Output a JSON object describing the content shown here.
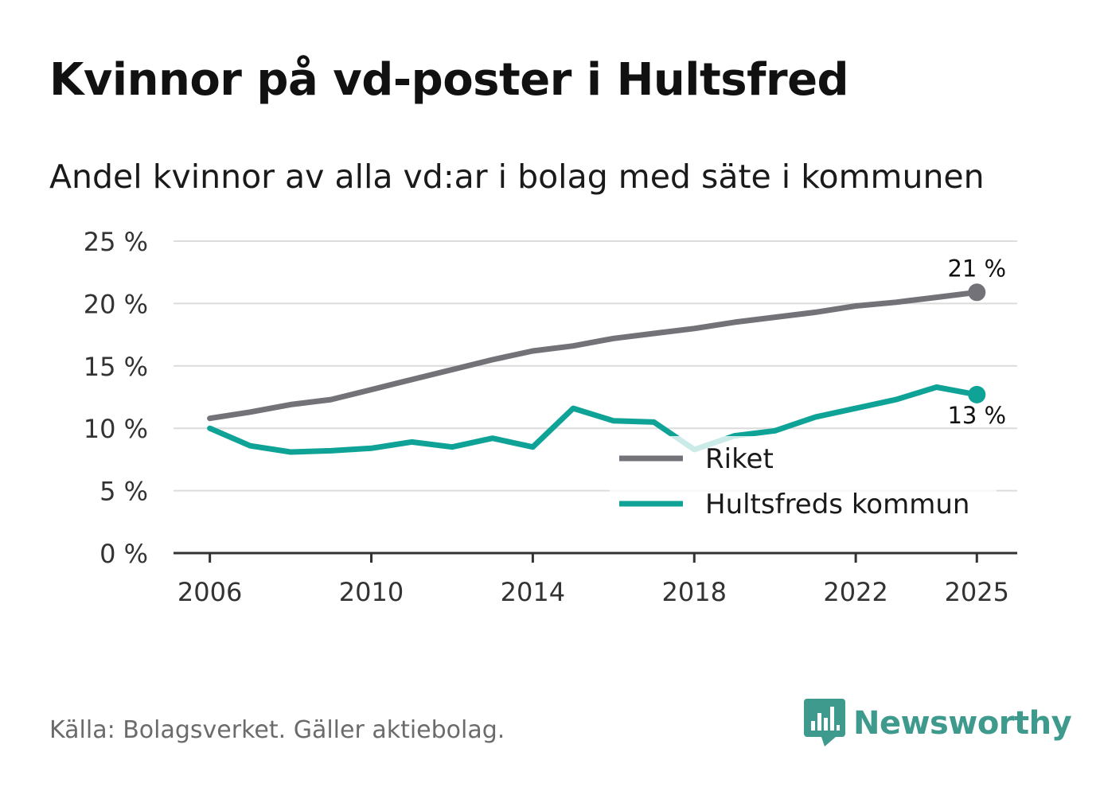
{
  "title": "Kvinnor på vd-poster i Hultsfred",
  "subtitle": "Andel kvinnor av alla vd:ar i bolag med säte i kommunen",
  "source": "Källa: Bolagsverket. Gäller aktiebolag.",
  "brand": {
    "name": "Newsworthy",
    "icon": "bar-chart-speech-bubble-icon",
    "color": "#3e9a8c"
  },
  "chart_data": {
    "type": "line",
    "title": "Kvinnor på vd-poster i Hultsfred",
    "subtitle": "Andel kvinnor av alla vd:ar i bolag med säte i kommunen",
    "xlabel": "",
    "ylabel": "",
    "x": [
      2006,
      2007,
      2008,
      2009,
      2010,
      2011,
      2012,
      2013,
      2014,
      2015,
      2016,
      2017,
      2018,
      2019,
      2020,
      2021,
      2022,
      2023,
      2024,
      2025
    ],
    "x_ticks": [
      2006,
      2010,
      2014,
      2018,
      2022,
      2025
    ],
    "x_tick_labels": [
      "2006",
      "2010",
      "2014",
      "2018",
      "2022",
      "2025"
    ],
    "xlim": [
      2005.1,
      2026
    ],
    "ylim": [
      0,
      25
    ],
    "y_ticks": [
      0,
      5,
      10,
      15,
      20,
      25
    ],
    "y_tick_labels": [
      "0 %",
      "5 %",
      "10 %",
      "15 %",
      "20 %",
      "25 %"
    ],
    "grid": true,
    "legend_position": "bottom-right",
    "series": [
      {
        "name": "Riket",
        "color": "#737278",
        "values": [
          10.8,
          11.3,
          11.9,
          12.3,
          13.1,
          13.9,
          14.7,
          15.5,
          16.2,
          16.6,
          17.2,
          17.6,
          18.0,
          18.5,
          18.9,
          19.3,
          19.8,
          20.1,
          20.5,
          20.9
        ],
        "end_label": "21 %"
      },
      {
        "name": "Hultsfreds kommun",
        "color": "#0fa397",
        "values": [
          10.0,
          8.6,
          8.1,
          8.2,
          8.4,
          8.9,
          8.5,
          9.2,
          8.5,
          11.6,
          10.6,
          10.5,
          8.3,
          9.4,
          9.8,
          10.9,
          11.6,
          12.3,
          13.3,
          12.7
        ],
        "end_label": "13 %"
      }
    ]
  }
}
